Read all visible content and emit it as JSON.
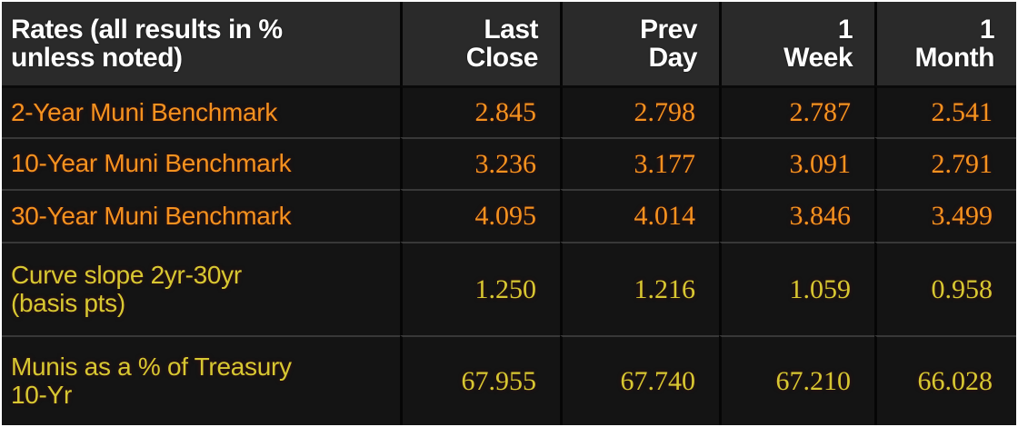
{
  "colors": {
    "page_background": "#ffffff",
    "table_background": "#141414",
    "header_background": "#2a2a2a",
    "header_text": "#ffffff",
    "benchmark_text": "#f5921f",
    "derived_text": "#d7c832",
    "column_divider": "#060606",
    "row_divider": "#383838"
  },
  "table": {
    "corner_header_lines": [
      "Rates (all results in %",
      "unless noted)"
    ],
    "column_headers": [
      [
        "Last",
        "Close"
      ],
      [
        "Prev",
        "Day"
      ],
      [
        "1",
        "Week"
      ],
      [
        "1",
        "Month"
      ]
    ],
    "rows": [
      {
        "label": [
          "2-Year Muni Benchmark"
        ],
        "values": [
          "2.845",
          "2.798",
          "2.787",
          "2.541"
        ],
        "color": "#f5921f"
      },
      {
        "label": [
          "10-Year Muni Benchmark"
        ],
        "values": [
          "3.236",
          "3.177",
          "3.091",
          "2.791"
        ],
        "color": "#f5921f"
      },
      {
        "label": [
          "30-Year Muni Benchmark"
        ],
        "values": [
          "4.095",
          "4.014",
          "3.846",
          "3.499"
        ],
        "color": "#f5921f"
      },
      {
        "label": [
          "Curve slope 2yr-30yr",
          "(basis pts)"
        ],
        "values": [
          "1.250",
          "1.216",
          "1.059",
          "0.958"
        ],
        "color": "#d7c832"
      },
      {
        "label": [
          "Munis as a % of Treasury",
          "10-Yr"
        ],
        "values": [
          "67.955",
          "67.740",
          "67.210",
          "66.028"
        ],
        "color": "#d7c832"
      }
    ]
  },
  "chart_data": {
    "type": "table",
    "title": "Rates (all results in % unless noted)",
    "columns": [
      "Last Close",
      "Prev Day",
      "1 Week",
      "1 Month"
    ],
    "rows": [
      {
        "label": "2-Year Muni Benchmark",
        "values": [
          2.845,
          2.798,
          2.787,
          2.541
        ]
      },
      {
        "label": "10-Year Muni Benchmark",
        "values": [
          3.236,
          3.177,
          3.091,
          2.791
        ]
      },
      {
        "label": "30-Year Muni Benchmark",
        "values": [
          4.095,
          4.014,
          3.846,
          3.499
        ]
      },
      {
        "label": "Curve slope 2yr-30yr (basis pts)",
        "values": [
          1.25,
          1.216,
          1.059,
          0.958
        ]
      },
      {
        "label": "Munis as a % of Treasury 10-Yr",
        "values": [
          67.955,
          67.74,
          67.21,
          66.028
        ]
      }
    ]
  }
}
